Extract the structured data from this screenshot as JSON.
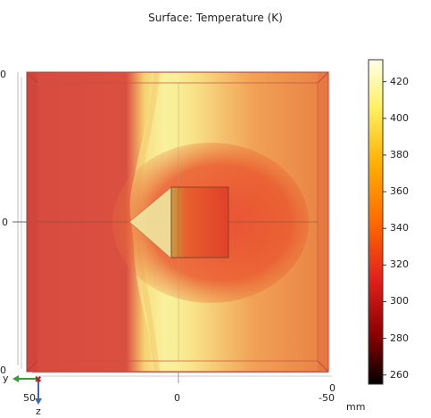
{
  "plot": {
    "title": "Surface: Temperature (K)",
    "y_ticks": [
      "0",
      "0",
      "0"
    ],
    "x_ticks": [
      "50",
      "0",
      "-50",
      "0"
    ],
    "unit": "mm",
    "axes": {
      "y": "y",
      "z": "z"
    }
  },
  "colorbar": {
    "range": [
      255,
      432
    ],
    "ticks": [
      "420",
      "400",
      "380",
      "360",
      "340",
      "320",
      "300",
      "280",
      "260"
    ],
    "tick_values": [
      420,
      400,
      380,
      360,
      340,
      320,
      300,
      280,
      260
    ],
    "colors": [
      "#000000",
      "#8a0000",
      "#e0201c",
      "#ff6a00",
      "#ffb000",
      "#fff060",
      "#ffffe8"
    ]
  }
}
